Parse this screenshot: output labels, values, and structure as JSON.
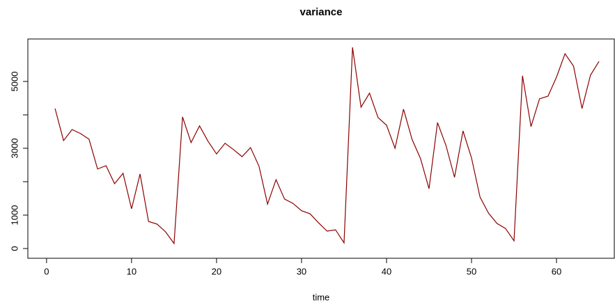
{
  "chart_data": {
    "type": "line",
    "title": "variance",
    "x_label": "time",
    "x": [
      1,
      2,
      3,
      4,
      5,
      6,
      7,
      8,
      9,
      10,
      11,
      12,
      13,
      14,
      15,
      16,
      17,
      18,
      19,
      20,
      21,
      22,
      23,
      24,
      25,
      26,
      27,
      28,
      29,
      30,
      31,
      32,
      33,
      34,
      35,
      36,
      37,
      38,
      39,
      40,
      41,
      42,
      43,
      44,
      45,
      46,
      47,
      48,
      49,
      50,
      51,
      52,
      53,
      54,
      55,
      56,
      57,
      58,
      59,
      60,
      61,
      62,
      63,
      64,
      65
    ],
    "series": [
      {
        "name": "variance",
        "color": "#8b0000",
        "values": [
          4190,
          3230,
          3560,
          3440,
          3270,
          2380,
          2480,
          1940,
          2250,
          1190,
          2230,
          810,
          730,
          500,
          150,
          3940,
          3170,
          3670,
          3210,
          2830,
          3150,
          2960,
          2750,
          3020,
          2460,
          1330,
          2060,
          1480,
          1350,
          1130,
          1040,
          770,
          520,
          560,
          170,
          6020,
          4230,
          4650,
          3920,
          3690,
          3000,
          4170,
          3270,
          2690,
          1790,
          3770,
          3080,
          2130,
          3520,
          2710,
          1540,
          1060,
          750,
          600,
          230,
          5170,
          3650,
          4480,
          4560,
          5130,
          5830,
          5460,
          4190,
          5190,
          5600
        ]
      }
    ],
    "xlim": [
      -2.2,
      66.8
    ],
    "xticks": [
      0,
      10,
      20,
      30,
      40,
      50,
      60
    ],
    "ylim": [
      -292,
      6271
    ],
    "yticks": [
      0,
      1000,
      {
        "value": 2000,
        "label": null
      },
      3000,
      {
        "value": 4000,
        "label": null
      },
      5000
    ]
  }
}
